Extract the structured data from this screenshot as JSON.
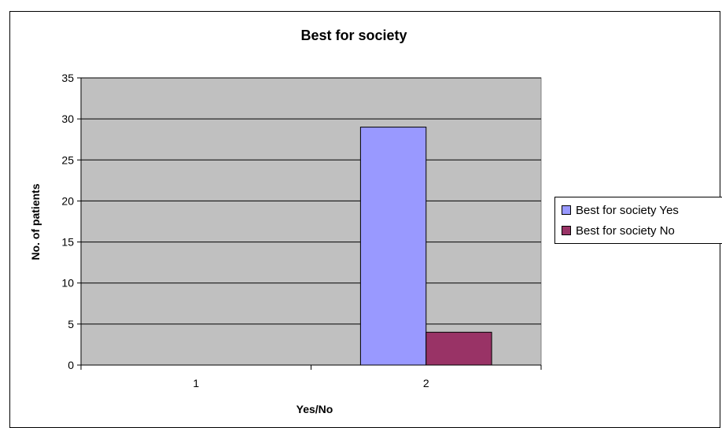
{
  "chart_data": {
    "type": "bar",
    "title": "Best for society",
    "xlabel": "Yes/No",
    "ylabel": "No. of patients",
    "categories": [
      "1",
      "2"
    ],
    "series": [
      {
        "name": "Best for society  Yes",
        "values": [
          0,
          29
        ],
        "color": "#9999ff"
      },
      {
        "name": "Best for society  No",
        "values": [
          0,
          4
        ],
        "color": "#993366"
      }
    ],
    "ylim": [
      0,
      35
    ],
    "yticks": [
      0,
      5,
      10,
      15,
      20,
      25,
      30,
      35
    ],
    "grid": true,
    "plot_background": "#c0c0c0",
    "legend_position": "right"
  }
}
